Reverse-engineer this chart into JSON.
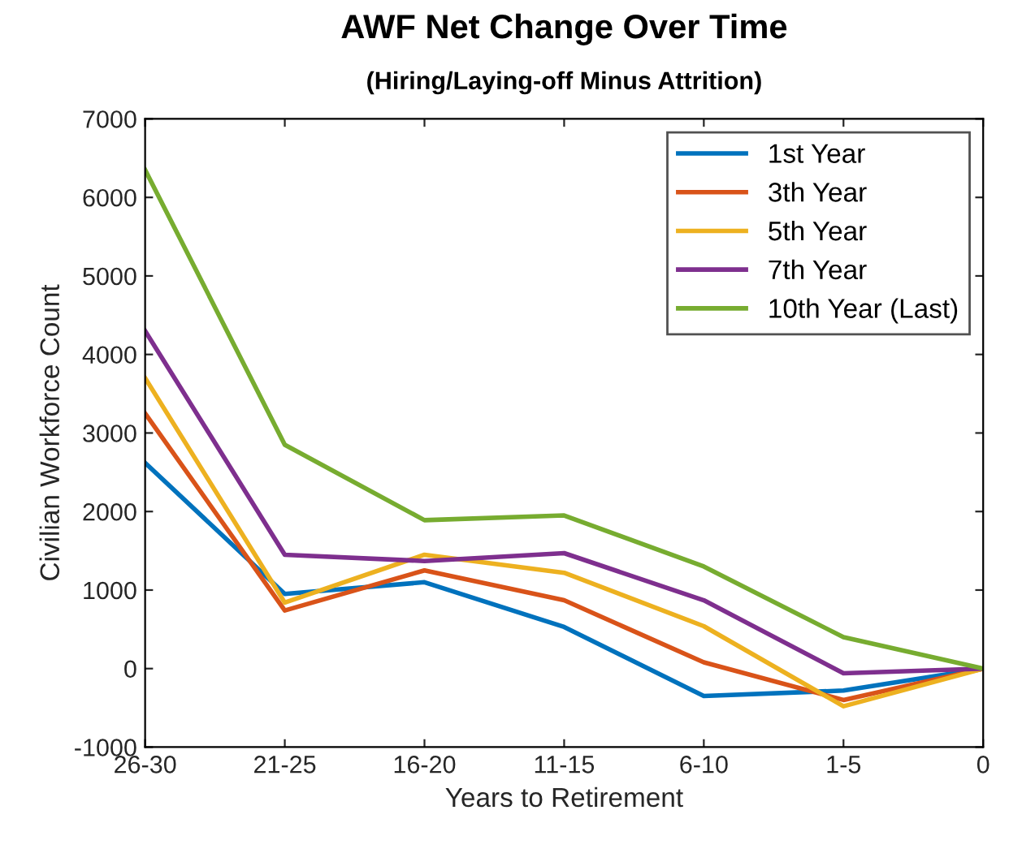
{
  "chart_data": {
    "type": "line",
    "title": "AWF Net Change Over Time",
    "subtitle": "(Hiring/Laying-off Minus Attrition)",
    "xlabel": "Years to Retirement",
    "ylabel": "Civilian Workforce Count",
    "categories": [
      "26-30",
      "21-25",
      "16-20",
      "11-15",
      "6-10",
      "1-5",
      "0"
    ],
    "series": [
      {
        "name": "1st Year",
        "color": "#0072bd",
        "values": [
          2620,
          950,
          1100,
          530,
          -350,
          -280,
          0
        ]
      },
      {
        "name": "3th Year",
        "color": "#d95319",
        "values": [
          3250,
          740,
          1250,
          870,
          80,
          -400,
          0
        ]
      },
      {
        "name": "5th Year",
        "color": "#edb120",
        "values": [
          3700,
          840,
          1450,
          1220,
          540,
          -480,
          0
        ]
      },
      {
        "name": "7th Year",
        "color": "#7e2f8e",
        "values": [
          4300,
          1450,
          1370,
          1470,
          870,
          -60,
          0
        ]
      },
      {
        "name": "10th Year (Last)",
        "color": "#77ac30",
        "values": [
          6350,
          2850,
          1890,
          1950,
          1300,
          400,
          0
        ]
      }
    ],
    "ylim": [
      -1000,
      7000
    ],
    "yticks": [
      -1000,
      0,
      1000,
      2000,
      3000,
      4000,
      5000,
      6000,
      7000
    ],
    "grid": false,
    "legend": "top right",
    "marker": "none",
    "line_style": "solid"
  }
}
